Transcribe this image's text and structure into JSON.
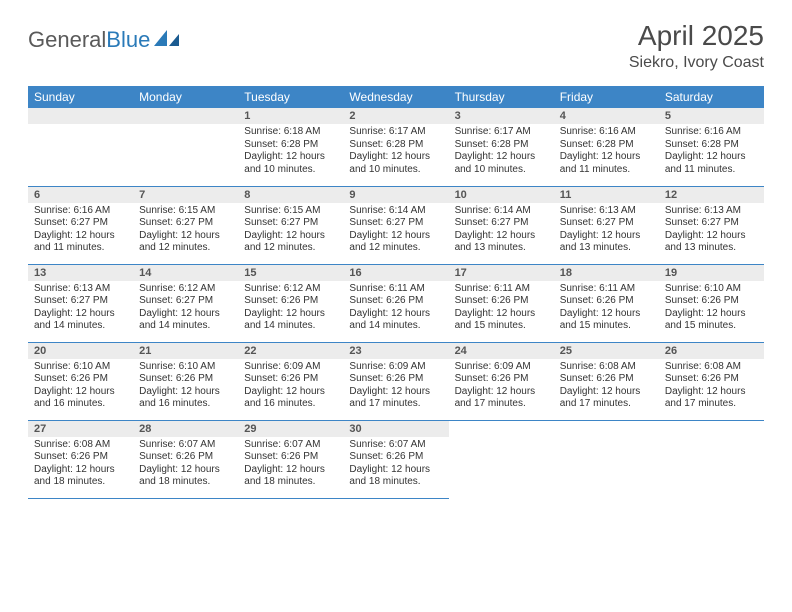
{
  "logo": {
    "textA": "General",
    "textB": "Blue"
  },
  "title": "April 2025",
  "location": "Siekro, Ivory Coast",
  "columns": [
    "Sunday",
    "Monday",
    "Tuesday",
    "Wednesday",
    "Thursday",
    "Friday",
    "Saturday"
  ],
  "colors": {
    "header_bg": "#3d85c6",
    "header_text": "#ffffff",
    "daynum_bg": "#ececec",
    "border": "#3d85c6",
    "logo_gray": "#5a5a5a",
    "logo_blue": "#2a7ab8"
  },
  "weeks": [
    [
      {
        "blank": true
      },
      {
        "blank": true
      },
      {
        "n": "1",
        "sr": "Sunrise: 6:18 AM",
        "ss": "Sunset: 6:28 PM",
        "dl": "Daylight: 12 hours and 10 minutes."
      },
      {
        "n": "2",
        "sr": "Sunrise: 6:17 AM",
        "ss": "Sunset: 6:28 PM",
        "dl": "Daylight: 12 hours and 10 minutes."
      },
      {
        "n": "3",
        "sr": "Sunrise: 6:17 AM",
        "ss": "Sunset: 6:28 PM",
        "dl": "Daylight: 12 hours and 10 minutes."
      },
      {
        "n": "4",
        "sr": "Sunrise: 6:16 AM",
        "ss": "Sunset: 6:28 PM",
        "dl": "Daylight: 12 hours and 11 minutes."
      },
      {
        "n": "5",
        "sr": "Sunrise: 6:16 AM",
        "ss": "Sunset: 6:28 PM",
        "dl": "Daylight: 12 hours and 11 minutes."
      }
    ],
    [
      {
        "n": "6",
        "sr": "Sunrise: 6:16 AM",
        "ss": "Sunset: 6:27 PM",
        "dl": "Daylight: 12 hours and 11 minutes."
      },
      {
        "n": "7",
        "sr": "Sunrise: 6:15 AM",
        "ss": "Sunset: 6:27 PM",
        "dl": "Daylight: 12 hours and 12 minutes."
      },
      {
        "n": "8",
        "sr": "Sunrise: 6:15 AM",
        "ss": "Sunset: 6:27 PM",
        "dl": "Daylight: 12 hours and 12 minutes."
      },
      {
        "n": "9",
        "sr": "Sunrise: 6:14 AM",
        "ss": "Sunset: 6:27 PM",
        "dl": "Daylight: 12 hours and 12 minutes."
      },
      {
        "n": "10",
        "sr": "Sunrise: 6:14 AM",
        "ss": "Sunset: 6:27 PM",
        "dl": "Daylight: 12 hours and 13 minutes."
      },
      {
        "n": "11",
        "sr": "Sunrise: 6:13 AM",
        "ss": "Sunset: 6:27 PM",
        "dl": "Daylight: 12 hours and 13 minutes."
      },
      {
        "n": "12",
        "sr": "Sunrise: 6:13 AM",
        "ss": "Sunset: 6:27 PM",
        "dl": "Daylight: 12 hours and 13 minutes."
      }
    ],
    [
      {
        "n": "13",
        "sr": "Sunrise: 6:13 AM",
        "ss": "Sunset: 6:27 PM",
        "dl": "Daylight: 12 hours and 14 minutes."
      },
      {
        "n": "14",
        "sr": "Sunrise: 6:12 AM",
        "ss": "Sunset: 6:27 PM",
        "dl": "Daylight: 12 hours and 14 minutes."
      },
      {
        "n": "15",
        "sr": "Sunrise: 6:12 AM",
        "ss": "Sunset: 6:26 PM",
        "dl": "Daylight: 12 hours and 14 minutes."
      },
      {
        "n": "16",
        "sr": "Sunrise: 6:11 AM",
        "ss": "Sunset: 6:26 PM",
        "dl": "Daylight: 12 hours and 14 minutes."
      },
      {
        "n": "17",
        "sr": "Sunrise: 6:11 AM",
        "ss": "Sunset: 6:26 PM",
        "dl": "Daylight: 12 hours and 15 minutes."
      },
      {
        "n": "18",
        "sr": "Sunrise: 6:11 AM",
        "ss": "Sunset: 6:26 PM",
        "dl": "Daylight: 12 hours and 15 minutes."
      },
      {
        "n": "19",
        "sr": "Sunrise: 6:10 AM",
        "ss": "Sunset: 6:26 PM",
        "dl": "Daylight: 12 hours and 15 minutes."
      }
    ],
    [
      {
        "n": "20",
        "sr": "Sunrise: 6:10 AM",
        "ss": "Sunset: 6:26 PM",
        "dl": "Daylight: 12 hours and 16 minutes."
      },
      {
        "n": "21",
        "sr": "Sunrise: 6:10 AM",
        "ss": "Sunset: 6:26 PM",
        "dl": "Daylight: 12 hours and 16 minutes."
      },
      {
        "n": "22",
        "sr": "Sunrise: 6:09 AM",
        "ss": "Sunset: 6:26 PM",
        "dl": "Daylight: 12 hours and 16 minutes."
      },
      {
        "n": "23",
        "sr": "Sunrise: 6:09 AM",
        "ss": "Sunset: 6:26 PM",
        "dl": "Daylight: 12 hours and 17 minutes."
      },
      {
        "n": "24",
        "sr": "Sunrise: 6:09 AM",
        "ss": "Sunset: 6:26 PM",
        "dl": "Daylight: 12 hours and 17 minutes."
      },
      {
        "n": "25",
        "sr": "Sunrise: 6:08 AM",
        "ss": "Sunset: 6:26 PM",
        "dl": "Daylight: 12 hours and 17 minutes."
      },
      {
        "n": "26",
        "sr": "Sunrise: 6:08 AM",
        "ss": "Sunset: 6:26 PM",
        "dl": "Daylight: 12 hours and 17 minutes."
      }
    ],
    [
      {
        "n": "27",
        "sr": "Sunrise: 6:08 AM",
        "ss": "Sunset: 6:26 PM",
        "dl": "Daylight: 12 hours and 18 minutes."
      },
      {
        "n": "28",
        "sr": "Sunrise: 6:07 AM",
        "ss": "Sunset: 6:26 PM",
        "dl": "Daylight: 12 hours and 18 minutes."
      },
      {
        "n": "29",
        "sr": "Sunrise: 6:07 AM",
        "ss": "Sunset: 6:26 PM",
        "dl": "Daylight: 12 hours and 18 minutes."
      },
      {
        "n": "30",
        "sr": "Sunrise: 6:07 AM",
        "ss": "Sunset: 6:26 PM",
        "dl": "Daylight: 12 hours and 18 minutes."
      },
      {
        "blank": true
      },
      {
        "blank": true
      },
      {
        "blank": true
      }
    ]
  ]
}
